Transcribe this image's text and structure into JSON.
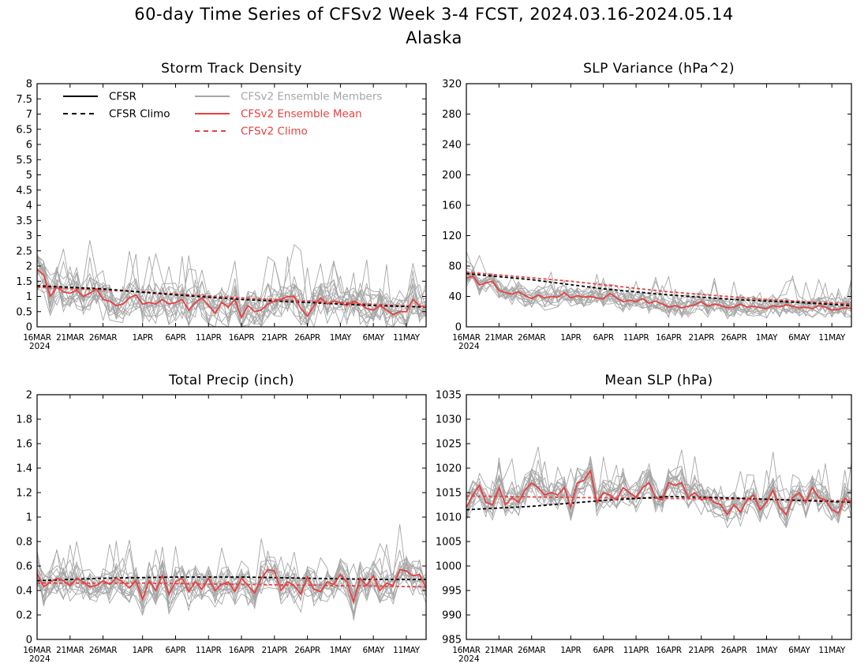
{
  "header": {
    "title": "60-day Time Series of CFSv2 Week 3-4 FCST, 2024.03.16-2024.05.14",
    "subtitle": "Alaska"
  },
  "colors": {
    "cfsr": "#000000",
    "members": "#a6a6a6",
    "mean": "#e8403f",
    "cfsv2_climo": "#e8403f"
  },
  "legend": {
    "cfsr": "CFSR",
    "cfsr_climo": "CFSR Climo",
    "members": "CFSv2 Ensemble Members",
    "mean": "CFSv2 Ensemble Mean",
    "cfsv2_climo": "CFSv2 Climo"
  },
  "x_axis": {
    "ticks": [
      "16MAR",
      "21MAR",
      "26MAR",
      "1APR",
      "6APR",
      "11APR",
      "16APR",
      "21APR",
      "26APR",
      "1MAY",
      "6MAY",
      "11MAY"
    ],
    "year": "2024",
    "range": [
      "2024-03-16",
      "2024-05-14"
    ]
  },
  "chart_data": [
    {
      "type": "line",
      "title": "Storm Track Density",
      "ylim": [
        0,
        8
      ],
      "yticks": [
        "0",
        "0.5",
        "1",
        "1.5",
        "2",
        "2.5",
        "3",
        "3.5",
        "4",
        "4.5",
        "5",
        "5.5",
        "6",
        "6.5",
        "7",
        "7.5",
        "8"
      ],
      "legend_placement": "top-left",
      "series": [
        {
          "name": "CFSR Climo",
          "x": [
            "2024-03-16",
            "2024-03-26",
            "2024-04-06",
            "2024-04-16",
            "2024-04-26",
            "2024-05-06",
            "2024-05-14"
          ],
          "values": [
            1.35,
            1.25,
            1.05,
            0.9,
            0.8,
            0.7,
            0.65
          ]
        },
        {
          "name": "CFSv2 Climo",
          "x": [
            "2024-03-16",
            "2024-04-01",
            "2024-04-16",
            "2024-05-01",
            "2024-05-14"
          ],
          "values": [
            1.3,
            1.15,
            0.95,
            0.8,
            0.65
          ]
        },
        {
          "name": "CFSv2 Ensemble Mean",
          "values": [
            1.9,
            1.7,
            1.0,
            1.3,
            1.15,
            1.1,
            1.2,
            1.0,
            1.1,
            1.25,
            0.9,
            0.85,
            0.7,
            0.75,
            0.95,
            1.05,
            0.75,
            0.8,
            0.75,
            0.9,
            0.75,
            0.8,
            0.9,
            0.55,
            0.8,
            0.95,
            0.7,
            0.45,
            0.8,
            0.65,
            0.9,
            0.3,
            0.7,
            0.5,
            0.55,
            0.75,
            0.85,
            0.9,
            1.0,
            1.0,
            0.6,
            0.35,
            0.7,
            0.95,
            0.75,
            0.85,
            0.8,
            0.7,
            0.85,
            0.75,
            0.6,
            0.55,
            0.7,
            0.55,
            0.4,
            0.5,
            0.5,
            0.9,
            0.7,
            0.65
          ]
        }
      ],
      "members": {
        "count": 16,
        "spread": 0.55,
        "seed": 11
      }
    },
    {
      "type": "line",
      "title": "SLP Variance (hPa^2)",
      "ylim": [
        0,
        320
      ],
      "yticks": [
        "0",
        "40",
        "80",
        "120",
        "160",
        "200",
        "240",
        "280",
        "320"
      ],
      "series": [
        {
          "name": "CFSR Climo",
          "x": [
            "2024-03-16",
            "2024-03-26",
            "2024-04-06",
            "2024-04-16",
            "2024-04-26",
            "2024-05-06",
            "2024-05-14"
          ],
          "values": [
            70,
            62,
            50,
            42,
            36,
            32,
            28
          ]
        },
        {
          "name": "CFSv2 Climo",
          "x": [
            "2024-03-16",
            "2024-04-01",
            "2024-04-16",
            "2024-05-01",
            "2024-05-14"
          ],
          "values": [
            72,
            60,
            46,
            36,
            30
          ]
        },
        {
          "name": "CFSv2 Ensemble Mean",
          "values": [
            64,
            67,
            55,
            58,
            60,
            48,
            45,
            43,
            46,
            41,
            37,
            42,
            38,
            40,
            39,
            45,
            38,
            41,
            39,
            40,
            38,
            37,
            44,
            38,
            33,
            35,
            33,
            37,
            31,
            34,
            30,
            26,
            28,
            25,
            27,
            29,
            33,
            27,
            30,
            28,
            25,
            26,
            30,
            26,
            27,
            25,
            24,
            28,
            26,
            29,
            27,
            25,
            26,
            24,
            28,
            26,
            22,
            23,
            25,
            24
          ]
        }
      ],
      "members": {
        "count": 16,
        "spread": 12,
        "seed": 23
      }
    },
    {
      "type": "line",
      "title": "Total Precip (inch)",
      "ylim": [
        0,
        2
      ],
      "yticks": [
        "0",
        "0.2",
        "0.4",
        "0.6",
        "0.8",
        "1",
        "1.2",
        "1.4",
        "1.6",
        "1.8",
        "2"
      ],
      "series": [
        {
          "name": "CFSR Climo",
          "x": [
            "2024-03-16",
            "2024-03-26",
            "2024-04-06",
            "2024-04-16",
            "2024-04-26",
            "2024-05-06",
            "2024-05-14"
          ],
          "values": [
            0.48,
            0.5,
            0.51,
            0.51,
            0.5,
            0.49,
            0.49
          ]
        },
        {
          "name": "CFSv2 Climo",
          "x": [
            "2024-03-16",
            "2024-04-01",
            "2024-04-16",
            "2024-05-01",
            "2024-05-14"
          ],
          "values": [
            0.46,
            0.46,
            0.45,
            0.44,
            0.43
          ]
        },
        {
          "name": "CFSv2 Ensemble Mean",
          "values": [
            0.54,
            0.43,
            0.47,
            0.5,
            0.48,
            0.44,
            0.5,
            0.47,
            0.43,
            0.44,
            0.48,
            0.45,
            0.5,
            0.47,
            0.42,
            0.48,
            0.33,
            0.48,
            0.4,
            0.52,
            0.37,
            0.47,
            0.5,
            0.39,
            0.47,
            0.41,
            0.5,
            0.4,
            0.45,
            0.47,
            0.39,
            0.5,
            0.44,
            0.38,
            0.5,
            0.57,
            0.56,
            0.4,
            0.47,
            0.44,
            0.37,
            0.51,
            0.41,
            0.39,
            0.47,
            0.45,
            0.53,
            0.47,
            0.31,
            0.5,
            0.44,
            0.52,
            0.4,
            0.46,
            0.44,
            0.57,
            0.56,
            0.52,
            0.53,
            0.42
          ]
        }
      ],
      "members": {
        "count": 16,
        "spread": 0.12,
        "seed": 37
      }
    },
    {
      "type": "line",
      "title": "Mean SLP (hPa)",
      "ylim": [
        985,
        1035
      ],
      "yticks": [
        "985",
        "990",
        "995",
        "1000",
        "1005",
        "1010",
        "1015",
        "1020",
        "1025",
        "1030",
        "1035"
      ],
      "series": [
        {
          "name": "CFSR Climo",
          "x": [
            "2024-03-16",
            "2024-03-26",
            "2024-04-06",
            "2024-04-16",
            "2024-04-26",
            "2024-05-06",
            "2024-05-14"
          ],
          "values": [
            1011.5,
            1012.2,
            1013.4,
            1014.2,
            1013.9,
            1013.4,
            1013.0
          ]
        },
        {
          "name": "CFSv2 Climo",
          "x": [
            "2024-03-16",
            "2024-04-01",
            "2024-04-16",
            "2024-05-01",
            "2024-05-14"
          ],
          "values": [
            1014.3,
            1014.0,
            1013.8,
            1013.6,
            1013.3
          ]
        },
        {
          "name": "CFSv2 Ensemble Mean",
          "values": [
            1012,
            1014.5,
            1016.5,
            1013,
            1012.5,
            1016,
            1012.5,
            1014,
            1013,
            1015.5,
            1017,
            1016,
            1014.5,
            1015,
            1014.5,
            1016,
            1012,
            1017,
            1017.5,
            1019.5,
            1013,
            1015,
            1014.5,
            1013.5,
            1016,
            1015,
            1014,
            1016,
            1017,
            1014,
            1013.5,
            1017,
            1016.5,
            1017,
            1014,
            1015,
            1013.5,
            1014,
            1013,
            1012.5,
            1010.5,
            1012.5,
            1011,
            1013.5,
            1014.5,
            1011.5,
            1013,
            1015.5,
            1012,
            1010.5,
            1014,
            1015,
            1013,
            1016,
            1014,
            1013.5,
            1011.5,
            1010.8,
            1013.8,
            1013
          ]
        }
      ],
      "members": {
        "count": 16,
        "spread": 2.6,
        "seed": 53
      }
    }
  ]
}
